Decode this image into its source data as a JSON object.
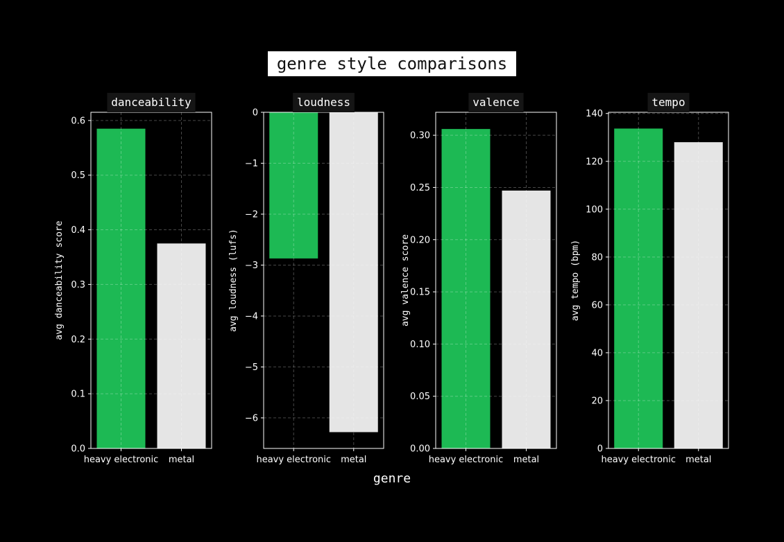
{
  "figure": {
    "title": "genre style comparisons",
    "xlabel": "genre"
  },
  "colors": {
    "background": "#000000",
    "heavy_electronic": "#1DB954",
    "metal": "#E5E5E5",
    "axis": "#FFFFFF",
    "grid": "#555555",
    "title_box": "#151515"
  },
  "chart_data": [
    {
      "type": "bar",
      "title": "danceability",
      "categories": [
        "heavy electronic",
        "metal"
      ],
      "values": [
        0.585,
        0.375
      ],
      "xlabel": "",
      "ylabel": "avg danceability score",
      "ylim": [
        0,
        0.615
      ],
      "yticks": [
        0.0,
        0.1,
        0.2,
        0.3,
        0.4,
        0.5,
        0.6
      ],
      "ytick_labels": [
        "0.0",
        "0.1",
        "0.2",
        "0.3",
        "0.4",
        "0.5",
        "0.6"
      ],
      "grid": true
    },
    {
      "type": "bar",
      "title": "loudness",
      "categories": [
        "heavy electronic",
        "metal"
      ],
      "values": [
        -2.87,
        -6.28
      ],
      "xlabel": "",
      "ylabel": "avg loudness (lufs)",
      "ylim": [
        -6.6,
        0
      ],
      "yticks": [
        0,
        -1,
        -2,
        -3,
        -4,
        -5,
        -6
      ],
      "ytick_labels": [
        "0",
        "−1",
        "−2",
        "−3",
        "−4",
        "−5",
        "−6"
      ],
      "grid": true
    },
    {
      "type": "bar",
      "title": "valence",
      "categories": [
        "heavy electronic",
        "metal"
      ],
      "values": [
        0.306,
        0.247
      ],
      "xlabel": "",
      "ylabel": "avg valence score",
      "ylim": [
        0,
        0.322
      ],
      "yticks": [
        0.0,
        0.05,
        0.1,
        0.15,
        0.2,
        0.25,
        0.3
      ],
      "ytick_labels": [
        "0.00",
        "0.05",
        "0.10",
        "0.15",
        "0.20",
        "0.25",
        "0.30"
      ],
      "grid": true
    },
    {
      "type": "bar",
      "title": "tempo",
      "categories": [
        "heavy electronic",
        "metal"
      ],
      "values": [
        133.7,
        128.0
      ],
      "xlabel": "",
      "ylabel": "avg tempo (bpm)",
      "ylim": [
        0,
        140.5
      ],
      "yticks": [
        0,
        20,
        40,
        60,
        80,
        100,
        120,
        140
      ],
      "ytick_labels": [
        "0",
        "20",
        "40",
        "60",
        "80",
        "100",
        "120",
        "140"
      ],
      "grid": true
    }
  ]
}
